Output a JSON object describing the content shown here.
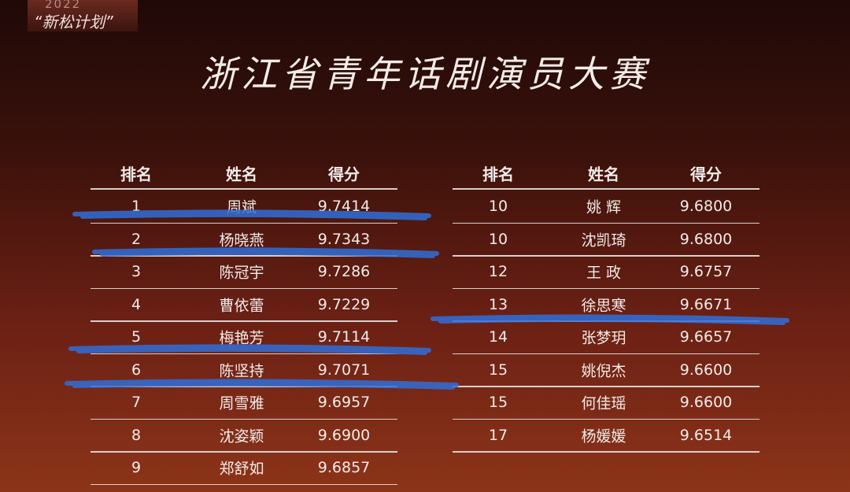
{
  "badge": {
    "year": "2022",
    "name": "“新松计划”"
  },
  "title": "浙江省青年话剧演员大赛",
  "tables": [
    {
      "header": [
        "排名",
        "姓名",
        "得分"
      ],
      "rows": [
        [
          "1",
          "周斌",
          "9.7414"
        ],
        [
          "2",
          "杨晓燕",
          "9.7343"
        ],
        [
          "3",
          "陈冠宇",
          "9.7286"
        ],
        [
          "4",
          "曹依蕾",
          "9.7229"
        ],
        [
          "5",
          "梅艳芳",
          "9.7114"
        ],
        [
          "6",
          "陈坚持",
          "9.7071"
        ],
        [
          "7",
          "周雪雅",
          "9.6957"
        ],
        [
          "8",
          "沈姿颖",
          "9.6900"
        ],
        [
          "9",
          "郑舒如",
          "9.6857"
        ]
      ]
    },
    {
      "header": [
        "排名",
        "姓名",
        "得分"
      ],
      "rows": [
        [
          "10",
          "姚 辉",
          "9.6800"
        ],
        [
          "10",
          "沈凯琦",
          "9.6800"
        ],
        [
          "12",
          "王 政",
          "9.6757"
        ],
        [
          "13",
          "徐思寒",
          "9.6671"
        ],
        [
          "14",
          "张梦玥",
          "9.6657"
        ],
        [
          "15",
          "姚倪杰",
          "9.6600"
        ],
        [
          "15",
          "何佳瑶",
          "9.6600"
        ],
        [
          "17",
          "杨媛媛",
          "9.6514"
        ]
      ]
    }
  ]
}
